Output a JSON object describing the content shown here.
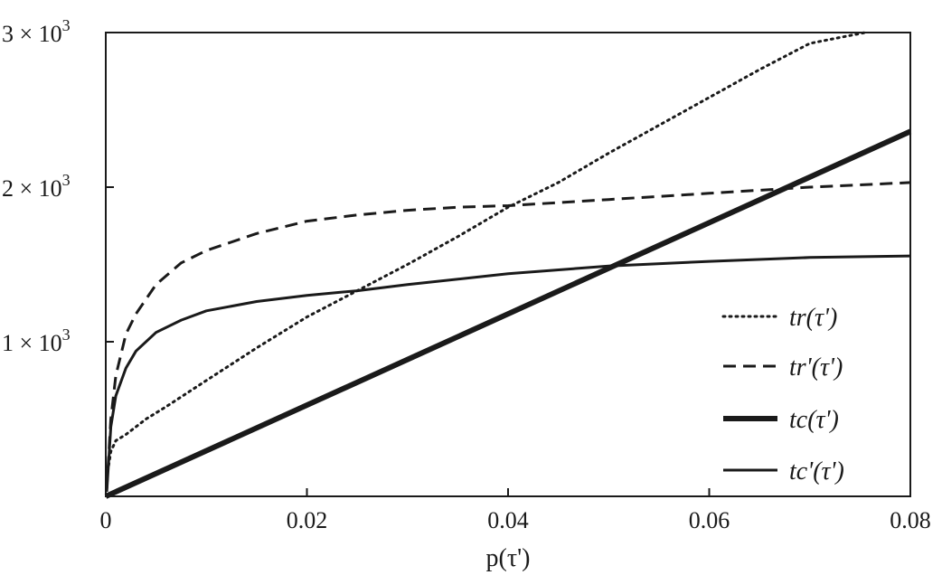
{
  "chart_data": {
    "type": "line",
    "xlabel": "p(τ')",
    "ylabel": "",
    "xlim": [
      0,
      0.08
    ],
    "ylim": [
      0,
      3000
    ],
    "grid": false,
    "legend_position": "right",
    "x_ticks": [
      {
        "value": 0,
        "label": "0"
      },
      {
        "value": 0.02,
        "label": "0.02"
      },
      {
        "value": 0.04,
        "label": "0.04"
      },
      {
        "value": 0.06,
        "label": "0.06"
      },
      {
        "value": 0.08,
        "label": "0.08"
      }
    ],
    "y_ticks": [
      {
        "value": 1000,
        "mantissa": "1 × 10",
        "exp": "3"
      },
      {
        "value": 2000,
        "mantissa": "2 × 10",
        "exp": "3"
      },
      {
        "value": 3000,
        "mantissa": "3 × 10",
        "exp": "3"
      }
    ],
    "series": [
      {
        "name": "tr(τ')",
        "style": "dotted",
        "x": [
          0.0001,
          0.0005,
          0.001,
          0.002,
          0.004,
          0.006,
          0.01,
          0.015,
          0.02,
          0.025,
          0.03,
          0.035,
          0.04,
          0.045,
          0.05,
          0.055,
          0.06,
          0.065,
          0.07,
          0.0755
        ],
        "y": [
          120,
          290,
          360,
          400,
          500,
          580,
          750,
          960,
          1160,
          1330,
          1500,
          1680,
          1870,
          2030,
          2220,
          2400,
          2580,
          2760,
          2930,
          3000
        ]
      },
      {
        "name": "tr'(τ')",
        "style": "dashed",
        "x": [
          0.0001,
          0.0005,
          0.001,
          0.002,
          0.003,
          0.005,
          0.0075,
          0.01,
          0.015,
          0.02,
          0.025,
          0.03,
          0.035,
          0.04,
          0.05,
          0.06,
          0.07,
          0.08
        ],
        "y": [
          50,
          500,
          780,
          1050,
          1180,
          1370,
          1510,
          1590,
          1700,
          1780,
          1820,
          1850,
          1870,
          1880,
          1920,
          1960,
          2000,
          2030
        ]
      },
      {
        "name": "tc(τ')",
        "style": "thick",
        "x": [
          0,
          0.08
        ],
        "y": [
          0,
          2360
        ]
      },
      {
        "name": "tc'(τ')",
        "style": "thin",
        "x": [
          0.0001,
          0.0005,
          0.001,
          0.002,
          0.003,
          0.005,
          0.0075,
          0.01,
          0.015,
          0.02,
          0.025,
          0.03,
          0.04,
          0.05,
          0.06,
          0.07,
          0.08
        ],
        "y": [
          30,
          450,
          650,
          830,
          940,
          1060,
          1140,
          1200,
          1260,
          1300,
          1330,
          1370,
          1440,
          1490,
          1520,
          1545,
          1555
        ]
      }
    ]
  }
}
